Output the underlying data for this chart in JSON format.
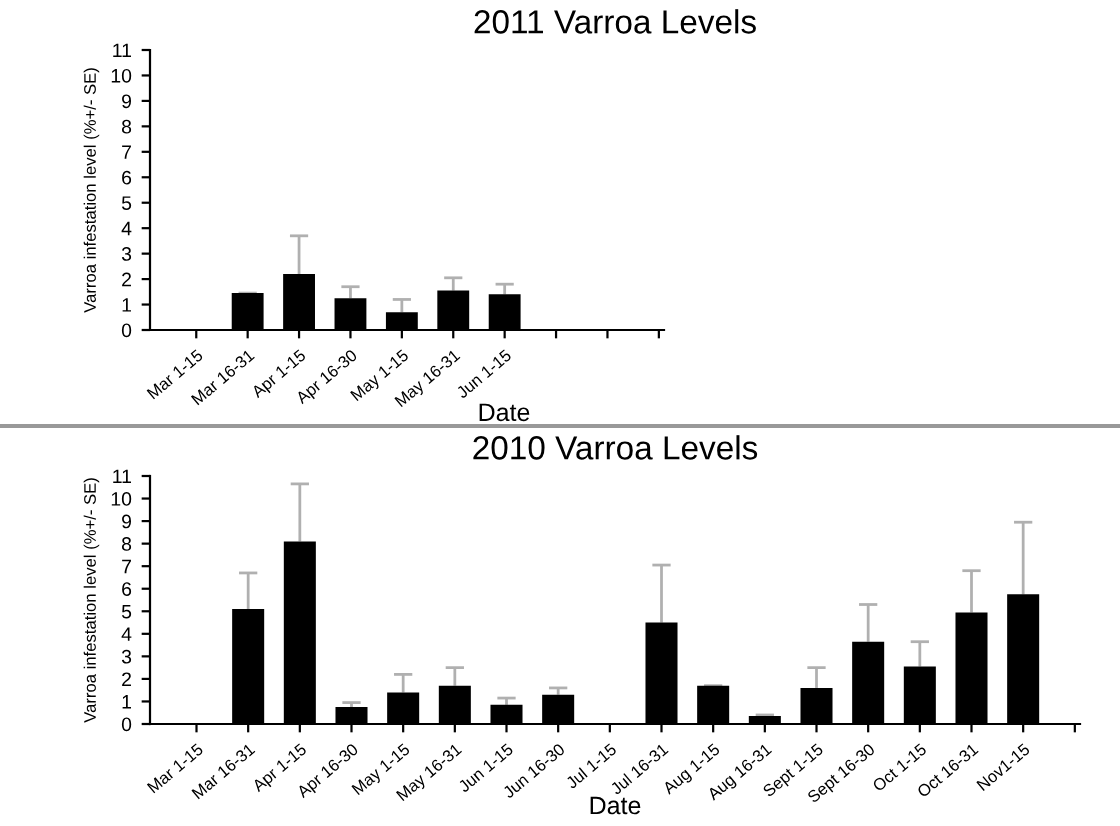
{
  "chart_data": [
    {
      "type": "bar",
      "title": "2011 Varroa Levels",
      "xlabel": "Date",
      "ylabel": "Varroa infestation level (%+/- SE)",
      "color": "#000000",
      "categories": [
        "Mar 1-15",
        "Mar 16-31",
        "Apr 1-15",
        "Apr 16-30",
        "May 1-15",
        "May 16-31",
        "Jun 1-15",
        null,
        null,
        null
      ],
      "values": [
        0,
        1.45,
        2.2,
        1.25,
        0.7,
        1.55,
        1.4,
        null,
        null,
        null
      ],
      "errors": [
        null,
        [
          1.45,
          1.45
        ],
        [
          2.2,
          3.7
        ],
        [
          1.25,
          1.7
        ],
        [
          0.7,
          1.2
        ],
        [
          1.55,
          2.05
        ],
        [
          1.4,
          1.8
        ],
        null,
        null,
        null
      ],
      "ylim": [
        0,
        11
      ],
      "yticks": [
        0,
        1,
        2,
        3,
        4,
        5,
        6,
        7,
        8,
        9,
        10,
        11
      ]
    },
    {
      "type": "bar",
      "title": "2010 Varroa Levels",
      "xlabel": "Date",
      "ylabel": "Varroa infestation level (%+/- SE)",
      "color": "#000000",
      "categories": [
        "Mar 1-15",
        "Mar 16-31",
        "Apr 1-15",
        "Apr 16-30",
        "May 1-15",
        "May 16-31",
        "Jun 1-15",
        "Jun 16-30",
        "Jul 1-15",
        "Jul 16-31",
        "Aug 1-15",
        "Aug 16-31",
        "Sept 1-15",
        "Sept 16-30",
        "Oct 1-15",
        "Oct 16-31",
        "Nov1-15",
        null
      ],
      "values": [
        0,
        5.1,
        8.1,
        0.75,
        1.4,
        1.7,
        0.85,
        1.3,
        0,
        4.5,
        1.7,
        0.35,
        1.6,
        3.65,
        2.55,
        4.95,
        5.75,
        null
      ],
      "errors": [
        null,
        [
          5.1,
          6.7
        ],
        [
          8.1,
          10.65
        ],
        [
          0.75,
          0.95
        ],
        [
          1.4,
          2.2
        ],
        [
          1.7,
          2.5
        ],
        [
          0.85,
          1.15
        ],
        [
          1.3,
          1.6
        ],
        null,
        [
          4.5,
          7.05
        ],
        [
          1.7,
          1.7
        ],
        [
          0.35,
          0.4
        ],
        [
          1.6,
          2.5
        ],
        [
          3.65,
          5.3
        ],
        [
          2.55,
          3.65
        ],
        [
          4.95,
          6.8
        ],
        [
          5.75,
          8.95
        ],
        null
      ],
      "ylim": [
        0,
        11
      ],
      "yticks": [
        0,
        1,
        2,
        3,
        4,
        5,
        6,
        7,
        8,
        9,
        10,
        11
      ]
    }
  ]
}
